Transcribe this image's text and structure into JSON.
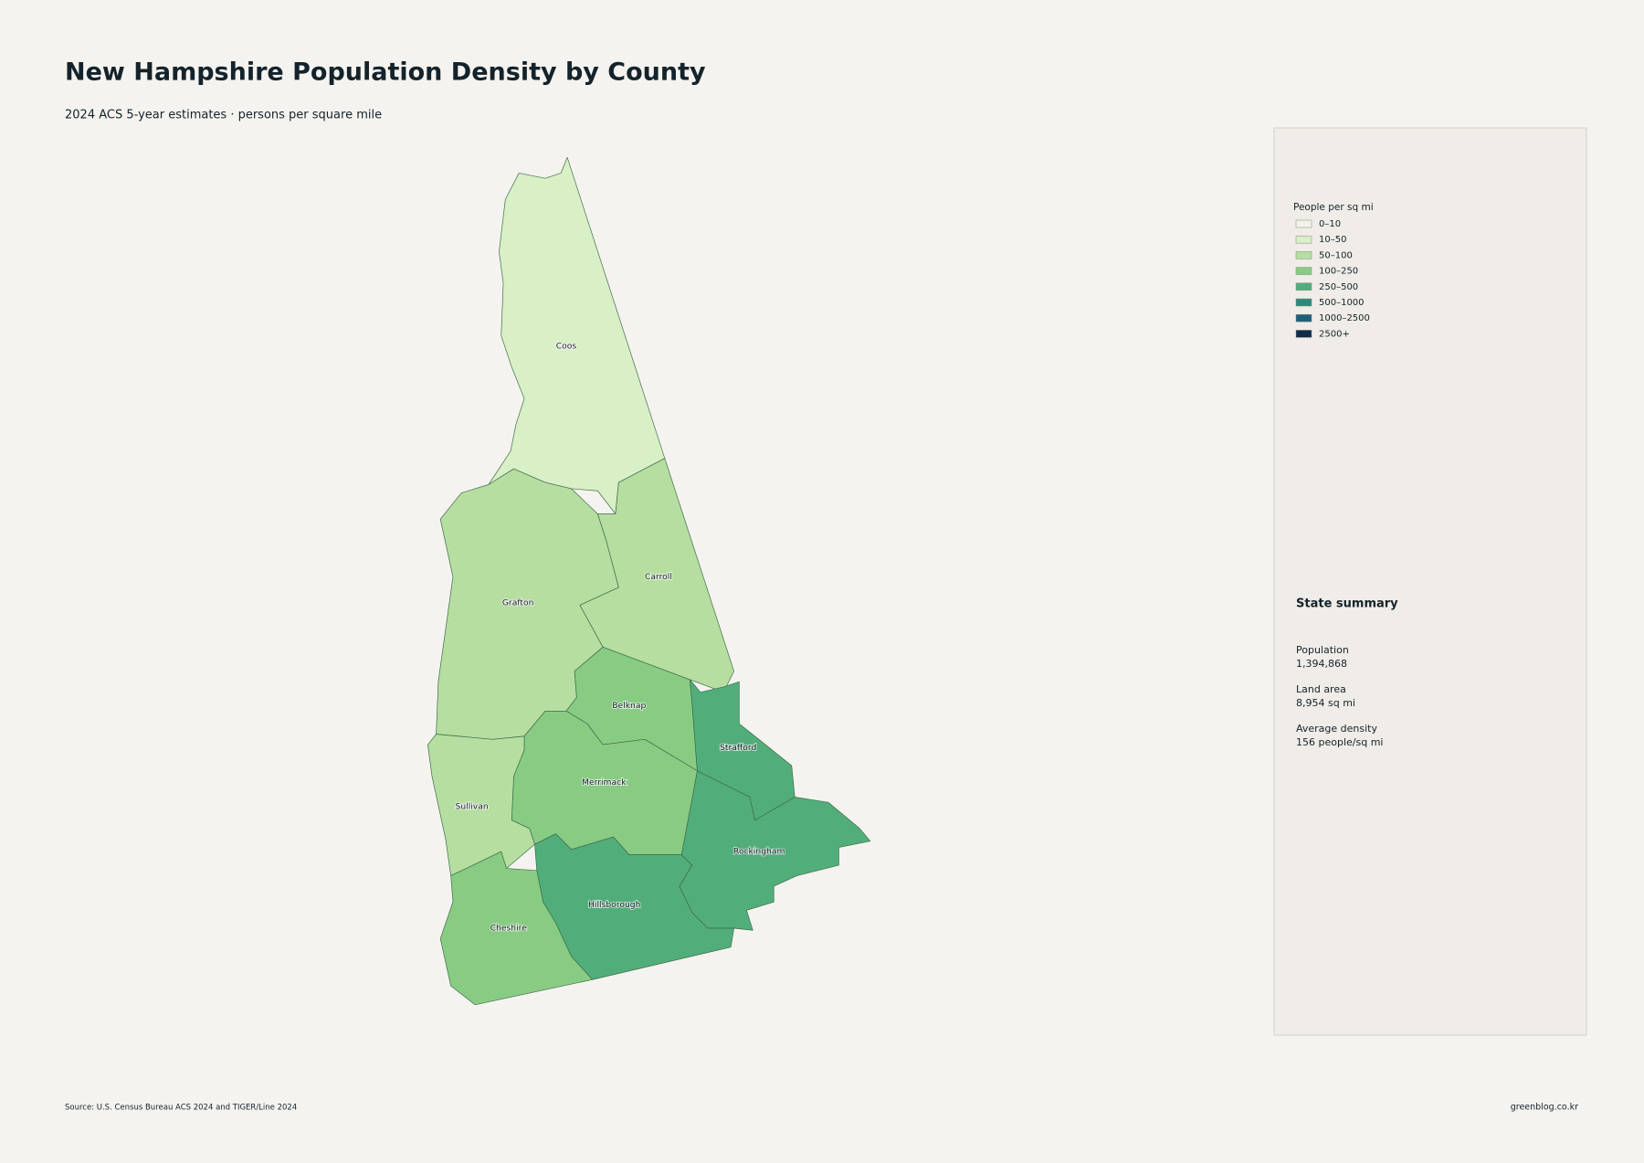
{
  "header": {
    "title": "New Hampshire Population Density by County",
    "subtitle": "2024 ACS 5-year estimates · persons per square mile"
  },
  "map": {
    "counties": [
      {
        "label": "Coos",
        "color": "#d9efc6"
      },
      {
        "label": "Carroll",
        "color": "#b5dea0"
      },
      {
        "label": "Grafton",
        "color": "#b5dea0"
      },
      {
        "label": "Belknap",
        "color": "#88cc84"
      },
      {
        "label": "Strafford",
        "color": "#51ae7a"
      },
      {
        "label": "Rockingham",
        "color": "#51ae7a"
      },
      {
        "label": "Merrimack",
        "color": "#88cc84"
      },
      {
        "label": "Sullivan",
        "color": "#b5dea0"
      },
      {
        "label": "Hillsborough",
        "color": "#51ae7a"
      },
      {
        "label": "Cheshire",
        "color": "#88cc84"
      }
    ]
  },
  "legend": {
    "title": "People per sq mi",
    "items": [
      {
        "label": "0–10",
        "color": "#f2f2ea"
      },
      {
        "label": "10–50",
        "color": "#d9efc6"
      },
      {
        "label": "50–100",
        "color": "#b5dea0"
      },
      {
        "label": "100–250",
        "color": "#88cc84"
      },
      {
        "label": "250–500",
        "color": "#51ae7a"
      },
      {
        "label": "500–1000",
        "color": "#2a8a7a"
      },
      {
        "label": "1000–2500",
        "color": "#1d5f7a"
      },
      {
        "label": "2500+",
        "color": "#122a4a"
      }
    ]
  },
  "summary": {
    "title": "State summary",
    "items": [
      {
        "label": "Population",
        "value": "1,394,868"
      },
      {
        "label": "Land area",
        "value": "8,954 sq mi"
      },
      {
        "label": "Average density",
        "value": "156 people/sq mi"
      }
    ]
  },
  "footer": {
    "source": "Source: U.S. Census Bureau ACS 2024 and TIGER/Line 2024",
    "credit": "greenblog.co.kr"
  }
}
